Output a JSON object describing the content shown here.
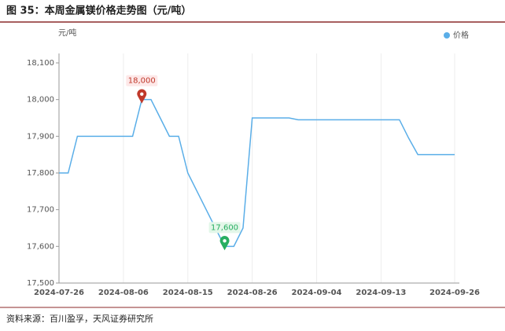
{
  "chart_data": {
    "type": "line",
    "title": "图 35：本周金属镁价格走势图（元/吨）",
    "y_label": "元/吨",
    "source": "资料来源：百川盈孚，天风证券研究所",
    "categories": [
      "2024-07-26",
      null,
      null,
      null,
      null,
      null,
      null,
      "2024-08-06",
      null,
      null,
      null,
      null,
      null,
      null,
      "2024-08-15",
      null,
      null,
      null,
      null,
      null,
      null,
      "2024-08-26",
      null,
      null,
      null,
      null,
      null,
      null,
      "2024-09-04",
      null,
      null,
      null,
      null,
      null,
      null,
      "2024-09-13",
      null,
      null,
      null,
      null,
      null,
      null,
      null,
      "2024-09-26"
    ],
    "series": [
      {
        "name": "价格",
        "color": "#5aaee8",
        "values": [
          17800,
          17800,
          17900,
          17900,
          17900,
          17900,
          17900,
          17900,
          17900,
          18000,
          18000,
          17950,
          17900,
          17900,
          17800,
          17750,
          17700,
          17650,
          17600,
          17600,
          17650,
          17950,
          17950,
          17950,
          17950,
          17950,
          17945,
          17945,
          17945,
          17945,
          17945,
          17945,
          17945,
          17945,
          17945,
          17945,
          17945,
          17945,
          17895,
          17850,
          17850,
          17850,
          17850,
          17850
        ],
        "value_labels": [
          null,
          null,
          null,
          null,
          null,
          null,
          null,
          null,
          null,
          "18,000",
          null,
          null,
          null,
          null,
          null,
          null,
          null,
          null,
          "17,600",
          null,
          null,
          null,
          null,
          null,
          null,
          null,
          null,
          null,
          null,
          null,
          null,
          null,
          null,
          null,
          null,
          null,
          null,
          null,
          null,
          null,
          null,
          null,
          null,
          null
        ]
      }
    ],
    "ylim": [
      17500,
      18100
    ],
    "yticks": [
      {
        "value": 17500,
        "label": "17,500"
      },
      {
        "value": 17600,
        "label": "17,600"
      },
      {
        "value": 17700,
        "label": "17,700"
      },
      {
        "value": 17800,
        "label": "17,800"
      },
      {
        "value": 17900,
        "label": "17,900"
      },
      {
        "value": 18000,
        "label": "18,000"
      },
      {
        "value": 18100,
        "label": "18,100"
      }
    ],
    "grid": true,
    "legend": "top-right"
  }
}
